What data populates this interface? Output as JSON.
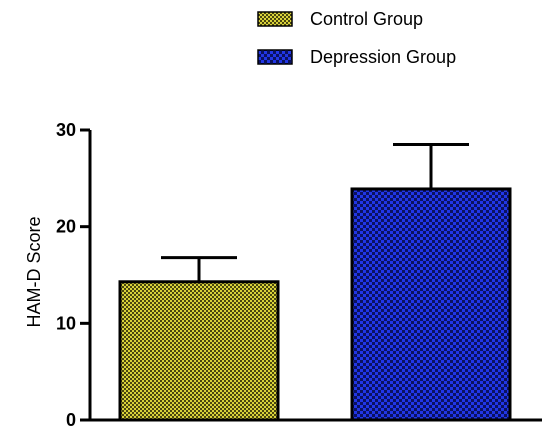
{
  "chart_data": {
    "type": "bar",
    "title": "",
    "xlabel": "",
    "ylabel": "HAM-D Score",
    "ylim": [
      0,
      30
    ],
    "yticks": [
      0,
      10,
      20,
      30
    ],
    "grid": false,
    "legend_position": "top-right",
    "categories": [
      "Control Group",
      "Depression Group"
    ],
    "series": [
      {
        "name": "Control Group",
        "value": 14.3,
        "error": 2.5,
        "color": "#c8c32a",
        "pattern": "fine-check"
      },
      {
        "name": "Depression Group",
        "value": 23.9,
        "error": 4.6,
        "color": "#1f2fd6",
        "pattern": "check"
      }
    ]
  }
}
